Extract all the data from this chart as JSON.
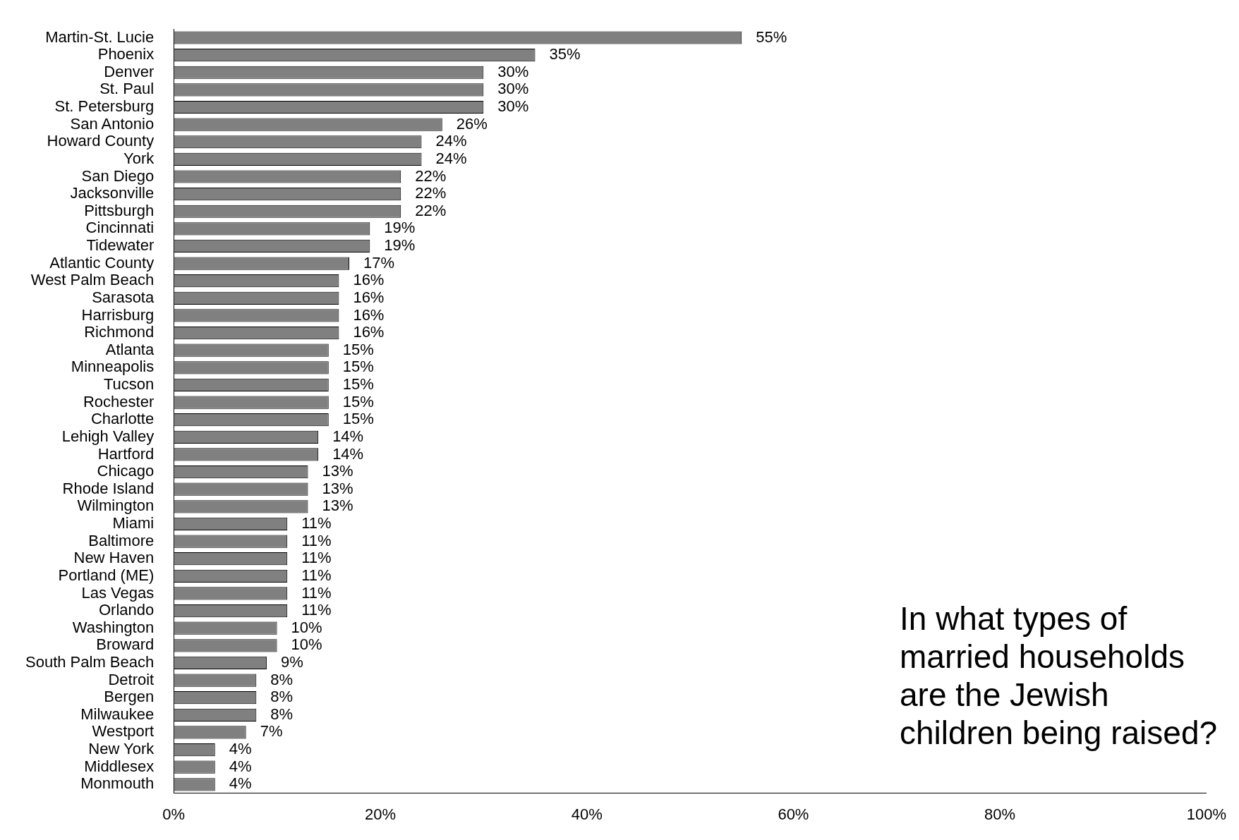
{
  "chart_data": {
    "type": "bar",
    "orientation": "horizontal",
    "categories": [
      "Martin-St. Lucie",
      "Phoenix",
      "Denver",
      "St. Paul",
      "St. Petersburg",
      "San Antonio",
      "Howard County",
      "York",
      "San Diego",
      "Jacksonville",
      "Pittsburgh",
      "Cincinnati",
      "Tidewater",
      "Atlantic County",
      "West Palm Beach",
      "Sarasota",
      "Harrisburg",
      "Richmond",
      "Atlanta",
      "Minneapolis",
      "Tucson",
      "Rochester",
      "Charlotte",
      "Lehigh Valley",
      "Hartford",
      "Chicago",
      "Rhode Island",
      "Wilmington",
      "Miami",
      "Baltimore",
      "New Haven",
      "Portland (ME)",
      "Las Vegas",
      "Orlando",
      "Washington",
      "Broward",
      "South Palm Beach",
      "Detroit",
      "Bergen",
      "Milwaukee",
      "Westport",
      "New York",
      "Middlesex",
      "Monmouth"
    ],
    "values": [
      55,
      35,
      30,
      30,
      30,
      26,
      24,
      24,
      22,
      22,
      22,
      19,
      19,
      17,
      16,
      16,
      16,
      16,
      15,
      15,
      15,
      15,
      15,
      14,
      14,
      13,
      13,
      13,
      11,
      11,
      11,
      11,
      11,
      11,
      10,
      10,
      9,
      8,
      8,
      8,
      7,
      4,
      4,
      4
    ],
    "value_labels": [
      "55%",
      "35%",
      "30%",
      "30%",
      "30%",
      "26%",
      "24%",
      "24%",
      "22%",
      "22%",
      "22%",
      "19%",
      "19%",
      "17%",
      "16%",
      "16%",
      "16%",
      "16%",
      "15%",
      "15%",
      "15%",
      "15%",
      "15%",
      "14%",
      "14%",
      "13%",
      "13%",
      "13%",
      "11%",
      "11%",
      "11%",
      "11%",
      "11%",
      "11%",
      "10%",
      "10%",
      "9%",
      "8%",
      "8%",
      "8%",
      "7%",
      "4%",
      "4%",
      "4%"
    ],
    "color": "#808080",
    "xlim": [
      0,
      100
    ],
    "xticks": [
      {
        "value": 0,
        "label": "0%"
      },
      {
        "value": 20,
        "label": "20%"
      },
      {
        "value": 40,
        "label": "40%"
      },
      {
        "value": 60,
        "label": "60%"
      },
      {
        "value": 80,
        "label": "80%"
      },
      {
        "value": 100,
        "label": "100%"
      }
    ],
    "grid": false,
    "legend": false,
    "annotations": [
      "In what types of married households are the Jewish children being raised?"
    ]
  }
}
